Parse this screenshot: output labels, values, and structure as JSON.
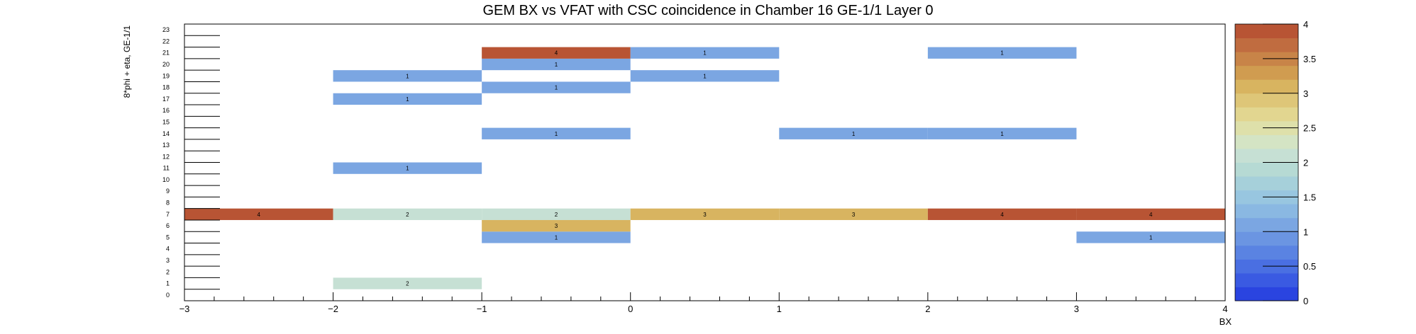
{
  "chart_data": {
    "type": "heatmap",
    "title": "GEM BX vs VFAT with CSC coincidence in Chamber 16 GE-1/1 Layer 0",
    "xlabel": "BX",
    "ylabel": "8*phi + eta, GE-1/1",
    "xlim": [
      -3,
      4
    ],
    "ylim": [
      0,
      24
    ],
    "x_ticks": [
      "−3",
      "−2",
      "−1",
      "0",
      "1",
      "2",
      "3",
      "4"
    ],
    "y_ticks": [
      "0",
      "1",
      "2",
      "3",
      "4",
      "5",
      "6",
      "7",
      "8",
      "9",
      "10",
      "11",
      "12",
      "13",
      "14",
      "15",
      "16",
      "17",
      "18",
      "19",
      "20",
      "21",
      "22",
      "23"
    ],
    "bin_width": 1,
    "cells": [
      {
        "x": -3,
        "y": 7,
        "value": 4,
        "label": "4"
      },
      {
        "x": -2,
        "y": 7,
        "value": 2,
        "label": "2"
      },
      {
        "x": -1,
        "y": 7,
        "value": 2,
        "label": "2"
      },
      {
        "x": 0,
        "y": 7,
        "value": 3,
        "label": "3"
      },
      {
        "x": 1,
        "y": 7,
        "value": 3,
        "label": "3"
      },
      {
        "x": 2,
        "y": 7,
        "value": 4,
        "label": "4"
      },
      {
        "x": 3,
        "y": 7,
        "value": 4,
        "label": "4"
      },
      {
        "x": -2,
        "y": 1,
        "value": 2,
        "label": "2"
      },
      {
        "x": -1,
        "y": 5,
        "value": 1,
        "label": "1"
      },
      {
        "x": 3,
        "y": 5,
        "value": 1,
        "label": "1"
      },
      {
        "x": -1,
        "y": 6,
        "value": 3,
        "label": "3"
      },
      {
        "x": -2,
        "y": 11,
        "value": 1,
        "label": "1"
      },
      {
        "x": -1,
        "y": 14,
        "value": 1,
        "label": "1"
      },
      {
        "x": 1,
        "y": 14,
        "value": 1,
        "label": "1"
      },
      {
        "x": 2,
        "y": 14,
        "value": 1,
        "label": "1"
      },
      {
        "x": -2,
        "y": 17,
        "value": 1,
        "label": "1"
      },
      {
        "x": -1,
        "y": 18,
        "value": 1,
        "label": "1"
      },
      {
        "x": -2,
        "y": 19,
        "value": 1,
        "label": "1"
      },
      {
        "x": 0,
        "y": 19,
        "value": 1,
        "label": "1"
      },
      {
        "x": -1,
        "y": 20,
        "value": 1,
        "label": "1"
      },
      {
        "x": -1,
        "y": 21,
        "value": 4,
        "label": "4"
      },
      {
        "x": 0,
        "y": 21,
        "value": 1,
        "label": "1"
      },
      {
        "x": 2,
        "y": 21,
        "value": 1,
        "label": "1"
      }
    ],
    "colorbar": {
      "range": [
        0,
        4
      ],
      "tick_labels": [
        "0",
        "0.5",
        "1",
        "1.5",
        "2",
        "2.5",
        "3",
        "3.5",
        "4"
      ],
      "palette": [
        "#2a44e0",
        "#3a5ae2",
        "#4a6fe2",
        "#5a83e2",
        "#6b95e2",
        "#7ba6e2",
        "#8ab8e2",
        "#98c6e0",
        "#a6d0da",
        "#b6dad4",
        "#c6e0d4",
        "#d4e4c4",
        "#dee0aa",
        "#e2d690",
        "#dec678",
        "#d8b460",
        "#d09c50",
        "#c88448",
        "#c06c40",
        "#b85434"
      ]
    },
    "legend": "none",
    "grid": false
  }
}
